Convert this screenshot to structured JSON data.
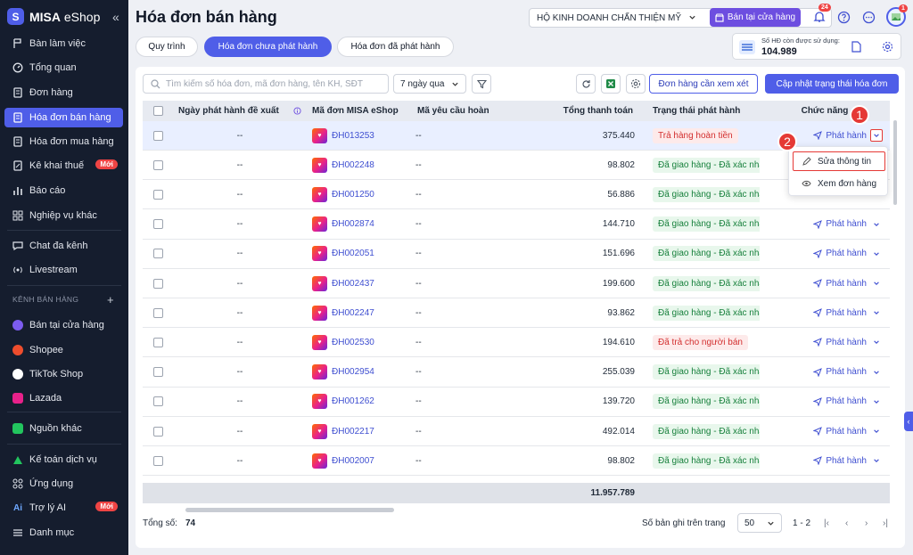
{
  "app": {
    "logo_main": "MISA",
    "logo_sub": " eShop"
  },
  "sidebar": {
    "items": [
      {
        "label": "Bàn làm việc"
      },
      {
        "label": "Tổng quan"
      },
      {
        "label": "Đơn hàng"
      },
      {
        "label": "Hóa đơn bán hàng"
      },
      {
        "label": "Hóa đơn mua hàng"
      },
      {
        "label": "Kê khai thuế",
        "badge": "Mới"
      },
      {
        "label": "Báo cáo"
      },
      {
        "label": "Nghiệp vụ khác"
      },
      {
        "label": "Chat đa kênh"
      },
      {
        "label": "Livestream"
      }
    ],
    "section_title": "KÊNH BÁN HÀNG",
    "channels": [
      {
        "label": "Bán tại cửa hàng",
        "color": "#7c5cf0"
      },
      {
        "label": "Shopee",
        "color": "#ee4d2d"
      },
      {
        "label": "TikTok Shop",
        "color": "#ffffff"
      },
      {
        "label": "Lazada",
        "color": "#e8218a"
      },
      {
        "label": "Nguồn khác",
        "color": "#22c55e"
      }
    ],
    "bottom": [
      {
        "label": "Kế toán dịch vụ"
      },
      {
        "label": "Ứng dụng"
      },
      {
        "label": "Trợ lý AI",
        "badge": "Mới",
        "prefix": "Ai"
      },
      {
        "label": "Danh mục"
      }
    ]
  },
  "header": {
    "title": "Hóa đơn bán hàng",
    "store": "HỘ KINH DOANH CHẤN THIỆN MỸ",
    "pos_button": "Bán tại cửa hàng",
    "notif_count": "24",
    "avatar_badge": "1"
  },
  "tabs": [
    {
      "label": "Quy trình"
    },
    {
      "label": "Hóa đơn chưa phát hành"
    },
    {
      "label": "Hóa đơn đã phát hành"
    }
  ],
  "quota": {
    "label": "Số HĐ còn được sử dụng:",
    "value": "104.989"
  },
  "toolbar": {
    "search_placeholder": "Tìm kiếm số hóa đơn, mã đơn hàng, tên KH, SĐT",
    "period": "7 ngày qua",
    "review_button": "Đơn hàng cần xem xét",
    "update_button": "Cập nhật trạng thái hóa đơn"
  },
  "table": {
    "headers": [
      "Ngày phát hành đề xuất",
      "Mã đơn MISA eShop",
      "Mã yêu cầu hoàn",
      "Tổng thanh toán",
      "Trạng thái phát hành",
      "Chức năng"
    ],
    "rows": [
      {
        "date": "--",
        "order": "ĐH013253",
        "refund": "--",
        "total": "375.440",
        "status": "Trả hàng hoàn tiền",
        "tone": "red",
        "action": "Phát hành"
      },
      {
        "date": "--",
        "order": "ĐH002248",
        "refund": "--",
        "total": "98.802",
        "status": "Đã giao hàng - Đã xác nhận",
        "tone": "green",
        "action": ""
      },
      {
        "date": "--",
        "order": "ĐH001250",
        "refund": "--",
        "total": "56.886",
        "status": "Đã giao hàng - Đã xác nhận",
        "tone": "green",
        "action": ""
      },
      {
        "date": "--",
        "order": "ĐH002874",
        "refund": "--",
        "total": "144.710",
        "status": "Đã giao hàng - Đã xác nhận",
        "tone": "green",
        "action": "Phát hành"
      },
      {
        "date": "--",
        "order": "ĐH002051",
        "refund": "--",
        "total": "151.696",
        "status": "Đã giao hàng - Đã xác nhận",
        "tone": "green",
        "action": "Phát hành"
      },
      {
        "date": "--",
        "order": "ĐH002437",
        "refund": "--",
        "total": "199.600",
        "status": "Đã giao hàng - Đã xác nhận",
        "tone": "green",
        "action": "Phát hành"
      },
      {
        "date": "--",
        "order": "ĐH002247",
        "refund": "--",
        "total": "93.862",
        "status": "Đã giao hàng - Đã xác nhận",
        "tone": "green",
        "action": "Phát hành"
      },
      {
        "date": "--",
        "order": "ĐH002530",
        "refund": "--",
        "total": "194.610",
        "status": "Đã trả cho người bán",
        "tone": "red",
        "action": "Phát hành"
      },
      {
        "date": "--",
        "order": "ĐH002954",
        "refund": "--",
        "total": "255.039",
        "status": "Đã giao hàng - Đã xác nhận",
        "tone": "green",
        "action": "Phát hành"
      },
      {
        "date": "--",
        "order": "ĐH001262",
        "refund": "--",
        "total": "139.720",
        "status": "Đã giao hàng - Đã xác nhận",
        "tone": "green",
        "action": "Phát hành"
      },
      {
        "date": "--",
        "order": "ĐH002217",
        "refund": "--",
        "total": "492.014",
        "status": "Đã giao hàng - Đã xác nhận",
        "tone": "green",
        "action": "Phát hành"
      },
      {
        "date": "--",
        "order": "ĐH002007",
        "refund": "--",
        "total": "98.802",
        "status": "Đã giao hàng - Đã xác nhận",
        "tone": "green",
        "action": "Phát hành"
      }
    ],
    "sum_total": "11.957.789"
  },
  "footer": {
    "total_label": "Tổng số:",
    "total_value": "74",
    "page_size_label": "Số bản ghi trên trang",
    "page_size": "50",
    "range": "1 - 2"
  },
  "context_menu": {
    "edit": "Sửa thông tin",
    "view": "Xem đơn hàng"
  },
  "steps": [
    "1",
    "2"
  ]
}
